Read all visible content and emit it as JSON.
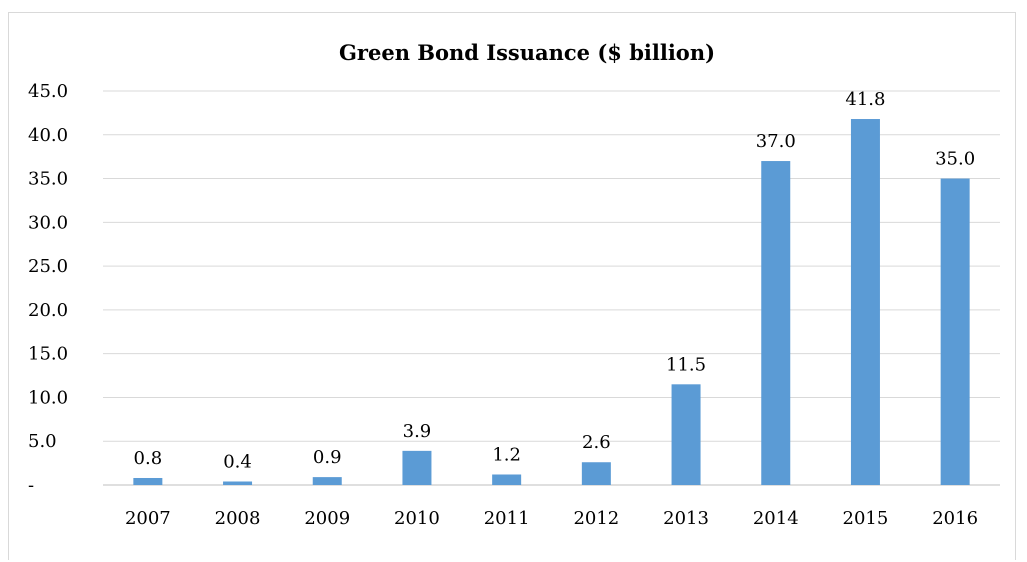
{
  "chart_data": {
    "type": "bar",
    "title": "Green Bond Issuance ($ billion)",
    "xlabel": "",
    "ylabel": "",
    "categories": [
      "2007",
      "2008",
      "2009",
      "2010",
      "2011",
      "2012",
      "2013",
      "2014",
      "2015",
      "2016"
    ],
    "values": [
      0.8,
      0.4,
      0.9,
      3.9,
      1.2,
      2.6,
      11.5,
      37.0,
      41.8,
      35.0
    ],
    "data_labels": [
      "0.8",
      "0.4",
      "0.9",
      "3.9",
      "1.2",
      "2.6",
      "11.5",
      "37.0",
      "41.8",
      "35.0"
    ],
    "ylim": [
      0,
      45
    ],
    "y_ticks": [
      0,
      5,
      10,
      15,
      20,
      25,
      30,
      35,
      40,
      45
    ],
    "y_tick_labels": [
      "-",
      "5.0",
      "10.0",
      "15.0",
      "20.0",
      "25.0",
      "30.0",
      "35.0",
      "40.0",
      "45.0"
    ],
    "grid": true,
    "legend": "none",
    "bar_color": "#5b9bd5"
  }
}
